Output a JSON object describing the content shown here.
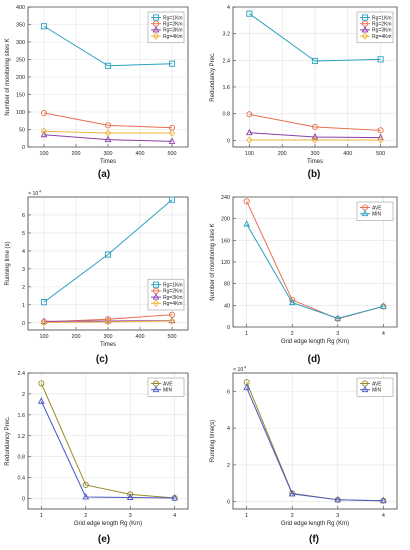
{
  "figure": {
    "panels": [
      "(a)",
      "(b)",
      "(c)",
      "(d)",
      "(e)",
      "(f)"
    ]
  },
  "chart_data": [
    {
      "id": "a",
      "type": "line",
      "panel_label": "(a)",
      "xlabel": "Times",
      "ylabel": "Number of monitoring sites K",
      "xlim": [
        50,
        550
      ],
      "ylim": [
        0,
        400
      ],
      "xticks": [
        100,
        200,
        300,
        400,
        500
      ],
      "yticks": [
        0,
        50,
        100,
        150,
        200,
        250,
        300,
        350,
        400
      ],
      "ytick_labels": [
        "0",
        "50",
        "100",
        "150",
        "200",
        "250",
        "300",
        "350",
        "400"
      ],
      "exponent": "",
      "grid": true,
      "legend": "top-right",
      "series": [
        {
          "name": "Rg=1Km",
          "color": "#2aa0be",
          "marker": "square",
          "x": [
            100,
            300,
            500
          ],
          "y": [
            345,
            232,
            238
          ]
        },
        {
          "name": "Rg=2Km",
          "color": "#e8704e",
          "marker": "circle",
          "x": [
            100,
            300,
            500
          ],
          "y": [
            97,
            62,
            55
          ]
        },
        {
          "name": "Rg=3Km",
          "color": "#8a3ea8",
          "marker": "triangle",
          "x": [
            100,
            300,
            500
          ],
          "y": [
            35,
            21,
            16
          ]
        },
        {
          "name": "Rg=4Km",
          "color": "#f0b43c",
          "marker": "diamond",
          "x": [
            100,
            300,
            500
          ],
          "y": [
            45,
            40,
            40
          ]
        }
      ]
    },
    {
      "id": "b",
      "type": "line",
      "panel_label": "(b)",
      "xlabel": "Times",
      "ylabel": "Redundancy Prec.",
      "xlim": [
        50,
        550
      ],
      "ylim": [
        -0.2,
        4
      ],
      "xticks": [
        100,
        200,
        300,
        400,
        500
      ],
      "yticks": [
        0,
        0.8,
        1.6,
        2.4,
        3.2,
        4
      ],
      "ytick_labels": [
        "0",
        "0.8",
        "1.6",
        "2.4",
        "3.2",
        "4"
      ],
      "exponent": "",
      "grid": true,
      "legend": "top-right",
      "series": [
        {
          "name": "Rg=1Km",
          "color": "#2aa0be",
          "marker": "square",
          "x": [
            100,
            300,
            500
          ],
          "y": [
            3.8,
            2.38,
            2.43
          ]
        },
        {
          "name": "Rg=2Km",
          "color": "#e8704e",
          "marker": "circle",
          "x": [
            100,
            300,
            500
          ],
          "y": [
            0.78,
            0.4,
            0.3
          ]
        },
        {
          "name": "Rg=3Km",
          "color": "#8a3ea8",
          "marker": "triangle",
          "x": [
            100,
            300,
            500
          ],
          "y": [
            0.23,
            0.1,
            0.08
          ]
        },
        {
          "name": "Rg=4Km",
          "color": "#f0b43c",
          "marker": "diamond",
          "x": [
            100,
            300,
            500
          ],
          "y": [
            0.01,
            0.01,
            0.01
          ]
        }
      ]
    },
    {
      "id": "c",
      "type": "line",
      "panel_label": "(c)",
      "xlabel": "Times",
      "ylabel": "Running time (s)",
      "xlim": [
        50,
        550
      ],
      "ylim": [
        -0.4,
        7
      ],
      "xticks": [
        100,
        200,
        300,
        400,
        500
      ],
      "yticks": [
        0,
        1,
        2,
        3,
        4,
        5,
        6
      ],
      "ytick_labels": [
        "0",
        "1",
        "2",
        "3",
        "4",
        "5",
        "6"
      ],
      "exponent": "× 10",
      "exponent_power": "4",
      "grid": true,
      "legend": "bottom-right",
      "series": [
        {
          "name": "Rg=1Km",
          "color": "#2aa0be",
          "marker": "square",
          "x": [
            100,
            300,
            500
          ],
          "y": [
            1.15,
            3.8,
            6.85
          ]
        },
        {
          "name": "Rg=2Km",
          "color": "#e8704e",
          "marker": "circle",
          "x": [
            100,
            300,
            500
          ],
          "y": [
            0.05,
            0.2,
            0.45
          ]
        },
        {
          "name": "Rg=3Km",
          "color": "#8a3ea8",
          "marker": "triangle",
          "x": [
            100,
            300,
            500
          ],
          "y": [
            0.08,
            0.1,
            0.12
          ]
        },
        {
          "name": "Rg=4Km",
          "color": "#f0b43c",
          "marker": "diamond",
          "x": [
            100,
            300,
            500
          ],
          "y": [
            0.02,
            0.05,
            0.1
          ]
        }
      ]
    },
    {
      "id": "d",
      "type": "line",
      "panel_label": "(d)",
      "xlabel": "Grid edge length Rg (Km)",
      "ylabel": "Number of monitoring sites K",
      "xlim": [
        0.7,
        4.3
      ],
      "ylim": [
        0,
        240
      ],
      "xticks": [
        1,
        2,
        3,
        4
      ],
      "yticks": [
        0,
        40,
        80,
        120,
        160,
        200,
        240
      ],
      "ytick_labels": [
        "0",
        "40",
        "80",
        "120",
        "160",
        "200",
        "240"
      ],
      "exponent": "",
      "grid": true,
      "legend": "top-right",
      "series": [
        {
          "name": "AVE",
          "color": "#e8704e",
          "marker": "circle",
          "x": [
            1,
            2,
            3,
            4
          ],
          "y": [
            232,
            50,
            15,
            38
          ]
        },
        {
          "name": "MIN",
          "color": "#2aa0be",
          "marker": "triangle",
          "x": [
            1,
            2,
            3,
            4
          ],
          "y": [
            190,
            45,
            16,
            38
          ]
        }
      ]
    },
    {
      "id": "e",
      "type": "line",
      "panel_label": "(e)",
      "xlabel": "Grid edge length Rg (Km)",
      "ylabel": "Redundancy Prec.",
      "xlim": [
        0.7,
        4.3
      ],
      "ylim": [
        -0.2,
        2.4
      ],
      "xticks": [
        1,
        2,
        3,
        4
      ],
      "yticks": [
        0,
        0.4,
        0.8,
        1.2,
        1.6,
        2,
        2.4
      ],
      "ytick_labels": [
        "0",
        "0.4",
        "0.8",
        "1.2",
        "1.6",
        "2",
        "2.4"
      ],
      "exponent": "",
      "grid": true,
      "legend": "top-right",
      "series": [
        {
          "name": "AVE",
          "color": "#9a8a2a",
          "marker": "circle",
          "x": [
            1,
            2,
            3,
            4
          ],
          "y": [
            2.2,
            0.26,
            0.08,
            0.01
          ]
        },
        {
          "name": "MIN",
          "color": "#4a58c8",
          "marker": "triangle",
          "x": [
            1,
            2,
            3,
            4
          ],
          "y": [
            1.86,
            0.03,
            0.02,
            0.01
          ]
        }
      ]
    },
    {
      "id": "f",
      "type": "line",
      "panel_label": "(f)",
      "xlabel": "Grid edge length Rg (Km)",
      "ylabel": "Running time(s)",
      "xlim": [
        0.7,
        4.3
      ],
      "ylim": [
        -0.4,
        7
      ],
      "xticks": [
        1,
        2,
        3,
        4
      ],
      "yticks": [
        0,
        2,
        4,
        6
      ],
      "ytick_labels": [
        "0",
        "2",
        "4",
        "6"
      ],
      "exponent": "× 10",
      "exponent_power": "4",
      "grid": true,
      "legend": "top-right",
      "series": [
        {
          "name": "AVE",
          "color": "#9a8a2a",
          "marker": "circle",
          "x": [
            1,
            2,
            3,
            4
          ],
          "y": [
            6.5,
            0.45,
            0.1,
            0.05
          ]
        },
        {
          "name": "MIN",
          "color": "#4a58c8",
          "marker": "triangle",
          "x": [
            1,
            2,
            3,
            4
          ],
          "y": [
            6.2,
            0.42,
            0.1,
            0.05
          ]
        }
      ]
    }
  ]
}
